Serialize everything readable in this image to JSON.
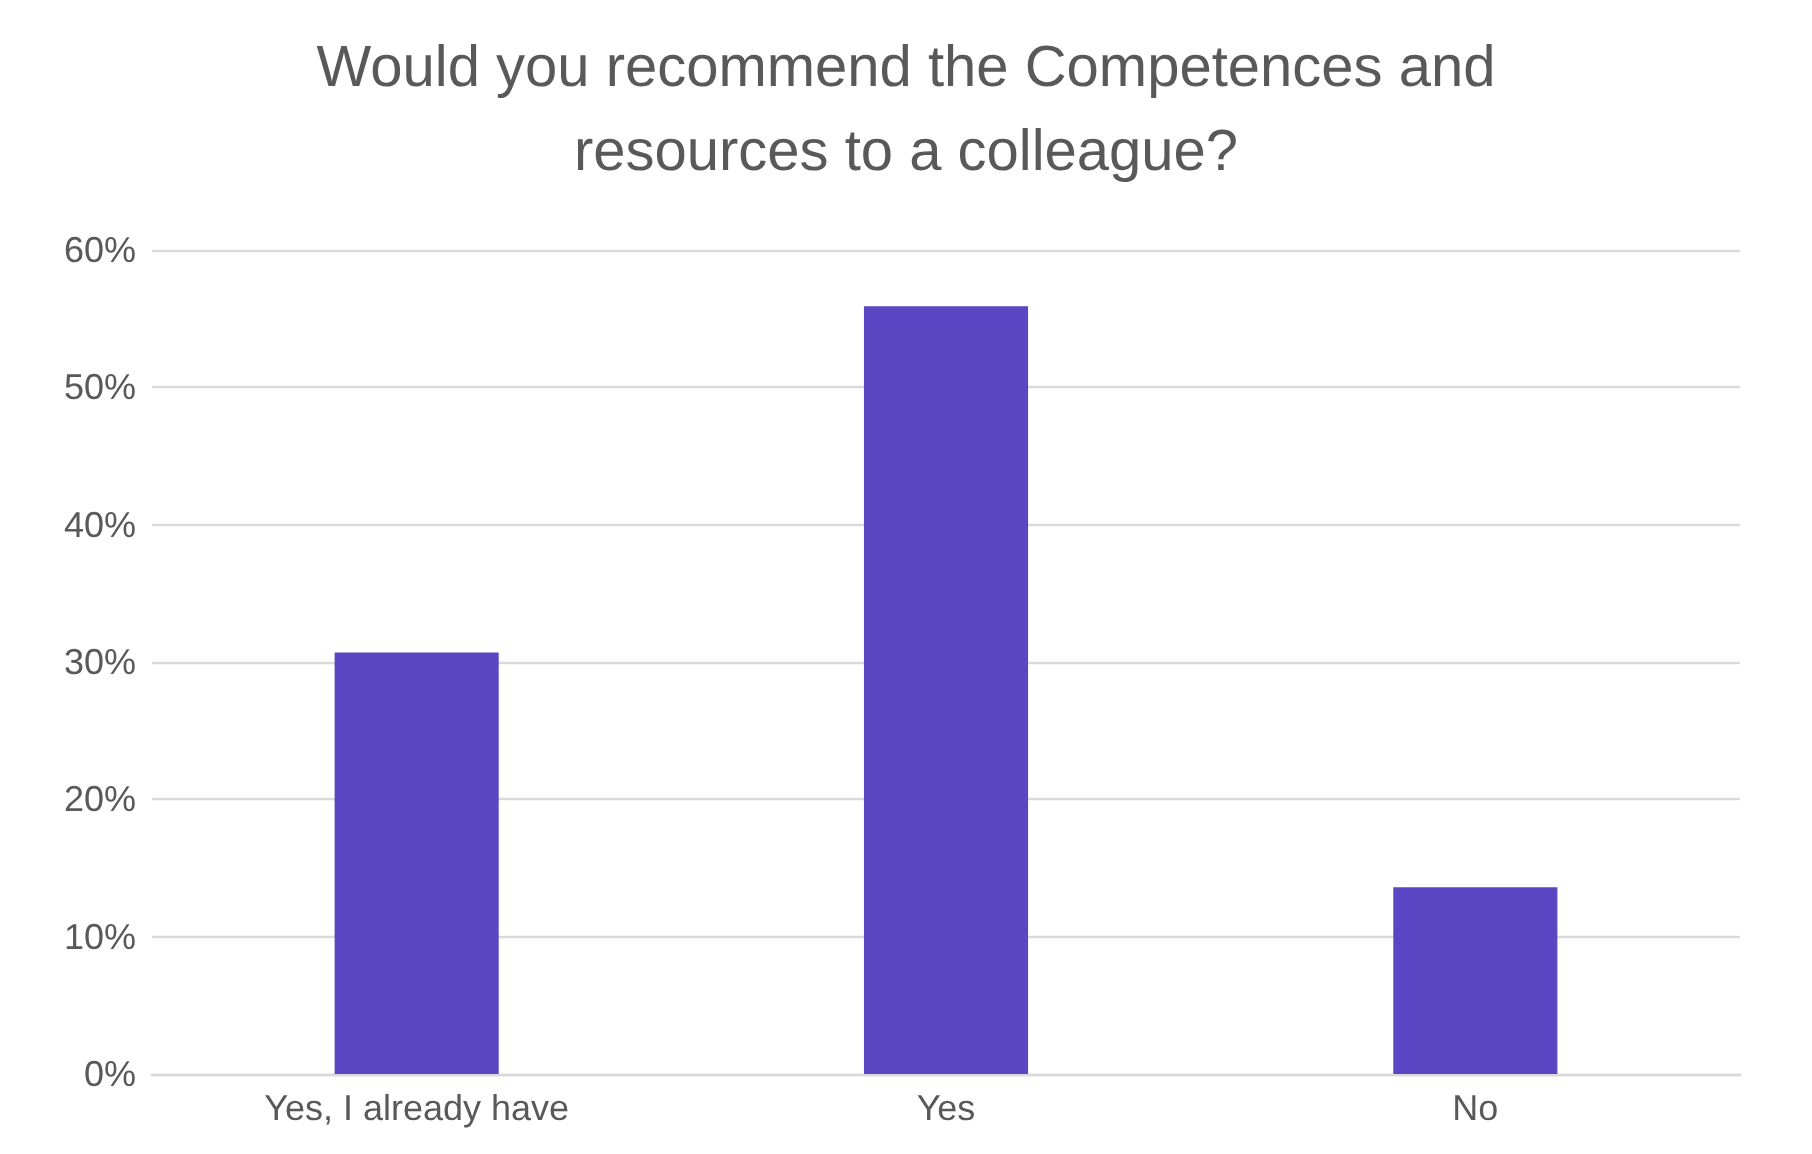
{
  "chart_data": {
    "type": "bar",
    "title": "Would you recommend the Competences and\nresources to a colleague?",
    "categories": [
      "Yes, I already have",
      "Yes",
      "No"
    ],
    "values": [
      30.7,
      55.9,
      13.6
    ],
    "color": "#5a45c3",
    "ylim": [
      0,
      60
    ],
    "yticks": [
      {
        "value": 0,
        "label": "0%"
      },
      {
        "value": 10,
        "label": "10%"
      },
      {
        "value": 20,
        "label": "20%"
      },
      {
        "value": 30,
        "label": "30%"
      },
      {
        "value": 40,
        "label": "40%"
      },
      {
        "value": 50,
        "label": "50%"
      },
      {
        "value": 60,
        "label": "60%"
      }
    ],
    "grid": "y"
  }
}
